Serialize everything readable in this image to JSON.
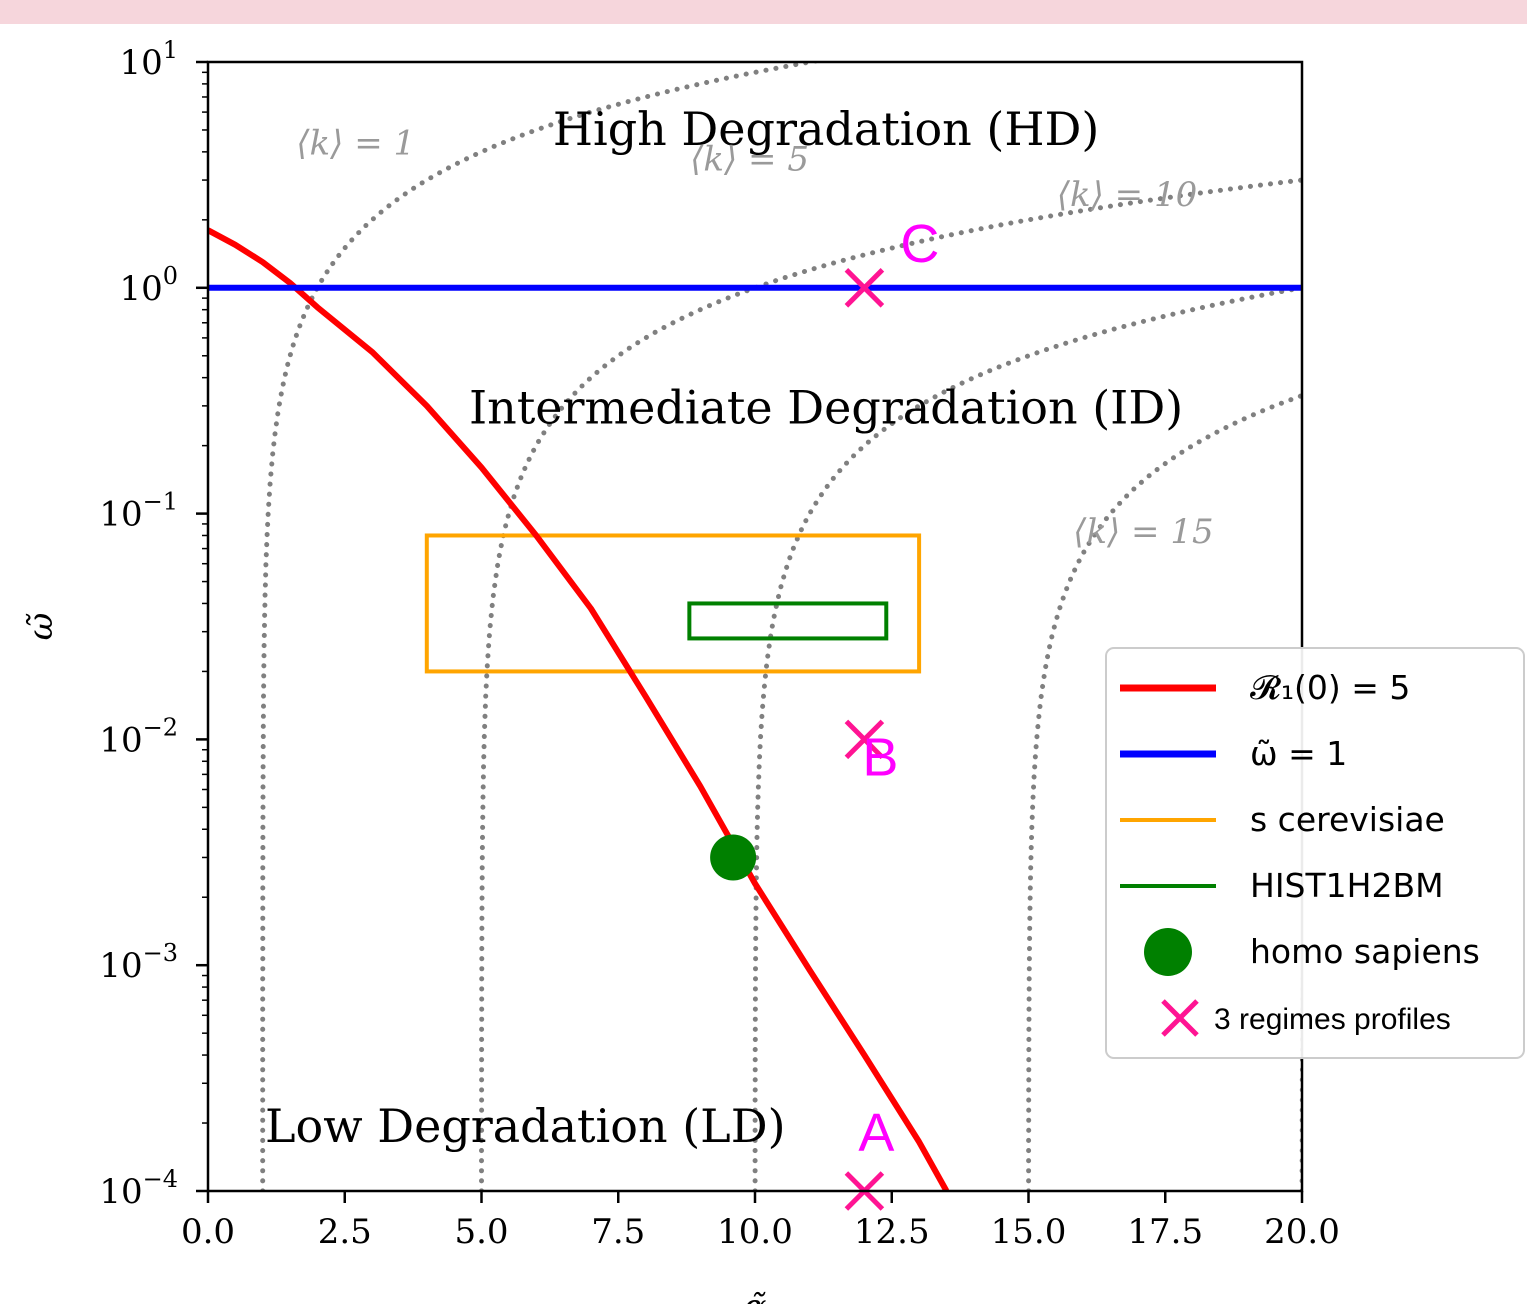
{
  "chart_data": {
    "type": "line",
    "xlabel": "α̃",
    "ylabel": "ω̃",
    "xlim": [
      0,
      20
    ],
    "ylim": [
      0.0001,
      10
    ],
    "yscale": "log",
    "grid": false,
    "legend_position": "right",
    "x_ticks": [
      "0.0",
      "2.5",
      "5.0",
      "7.5",
      "10.0",
      "12.5",
      "15.0",
      "17.5",
      "20.0"
    ],
    "y_ticks": [
      {
        "base": "10",
        "exp": "1",
        "value": 10
      },
      {
        "base": "10",
        "exp": "0",
        "value": 1
      },
      {
        "base": "10",
        "exp": "−1",
        "value": 0.1
      },
      {
        "base": "10",
        "exp": "−2",
        "value": 0.01
      },
      {
        "base": "10",
        "exp": "−3",
        "value": 0.001
      },
      {
        "base": "10",
        "exp": "−4",
        "value": 0.0001
      }
    ],
    "regions": [
      {
        "label": "High Degradation (HD)",
        "x": 11.3,
        "y": 4.3
      },
      {
        "label": "Intermediate Degradation (ID)",
        "x": 11.3,
        "y": 0.25
      },
      {
        "label": "Low Degradation (LD)",
        "x": 5.8,
        "y": 0.000165
      }
    ],
    "series": [
      {
        "name": "𝓡₁(0) = 5",
        "color": "#ff0000",
        "style": "solid",
        "x": [
          0,
          0.5,
          1.0,
          1.5,
          2.0,
          3.0,
          4.0,
          5.0,
          6.0,
          7.0,
          8.0,
          9.0,
          10.0,
          11.0,
          12.0,
          13.0,
          13.5
        ],
        "y": [
          1.8,
          1.55,
          1.3,
          1.05,
          0.82,
          0.52,
          0.3,
          0.16,
          0.08,
          0.038,
          0.0155,
          0.0062,
          0.0023,
          0.00095,
          0.0004,
          0.000165,
          0.0001
        ]
      },
      {
        "name": "ω̃ = 1",
        "color": "#0000ff",
        "style": "solid",
        "x": [
          0,
          20
        ],
        "y": [
          1,
          1
        ]
      }
    ],
    "k_curves": {
      "color": "#808080",
      "style": "dotted",
      "curves": [
        {
          "k": 1,
          "label": "⟨k⟩ = 1",
          "asymptote": 1,
          "label_x": 2.7,
          "label_y": 3.9,
          "show_label": true
        },
        {
          "k": 5,
          "label": "⟨k⟩ = 5",
          "asymptote": 5,
          "label_x": 9.9,
          "label_y": 3.3,
          "show_label": true
        },
        {
          "k": 10,
          "label": "⟨k⟩ = 10",
          "asymptote": 10,
          "label_x": 16.8,
          "label_y": 2.3,
          "show_label": true
        },
        {
          "k": 15,
          "label": "⟨k⟩ = 15",
          "asymptote": 15,
          "label_x": 17.1,
          "label_y": 0.074,
          "show_label": true
        },
        {
          "k": 20,
          "label": "",
          "asymptote": 20,
          "show_label": false
        }
      ]
    },
    "rectangles": [
      {
        "name": "s cerevisiae",
        "color": "#ffa500",
        "x0": 4.0,
        "x1": 13.0,
        "y0": 0.02,
        "y1": 0.08
      },
      {
        "name": "HIST1H2BM",
        "color": "#008000",
        "x0": 8.8,
        "x1": 12.4,
        "y0": 0.028,
        "y1": 0.04
      }
    ],
    "points": [
      {
        "name": "homo sapiens",
        "color": "#008000",
        "x": 9.6,
        "y": 0.003,
        "marker": "circle"
      }
    ],
    "regime_profiles": {
      "name": "3 regimes profiles",
      "color": "#ff1493",
      "marker": "x",
      "points": [
        {
          "label": "A",
          "x": 12.0,
          "y": 0.0001
        },
        {
          "label": "B",
          "x": 12.0,
          "y": 0.01
        },
        {
          "label": "C",
          "x": 12.0,
          "y": 1.0
        }
      ]
    },
    "legend": [
      {
        "label": "𝓡₁(0) = 5",
        "color": "#ff0000",
        "kind": "line"
      },
      {
        "label": "ω̃ = 1",
        "color": "#0000ff",
        "kind": "line"
      },
      {
        "label": "s cerevisiae",
        "color": "#ffa500",
        "kind": "thinline"
      },
      {
        "label": "HIST1H2BM",
        "color": "#008000",
        "kind": "thinline"
      },
      {
        "label": "homo sapiens",
        "color": "#008000",
        "kind": "circle"
      },
      {
        "label": "3 regimes profiles",
        "color": "#ff1493",
        "kind": "x"
      }
    ]
  }
}
